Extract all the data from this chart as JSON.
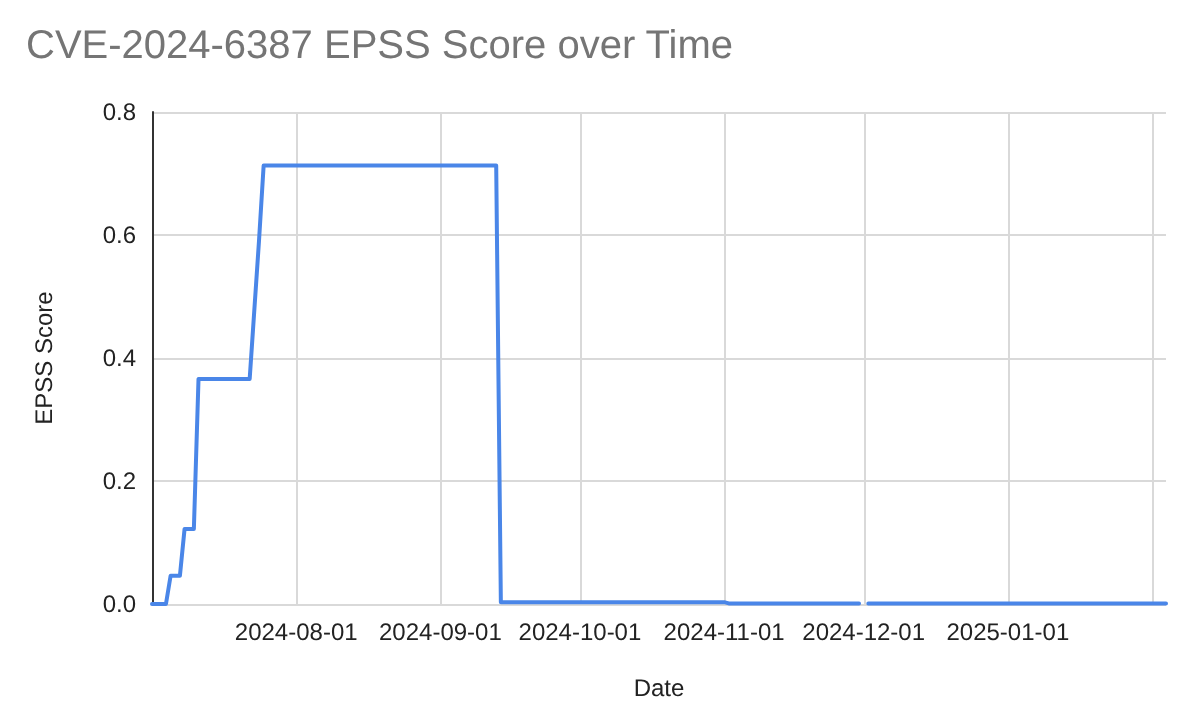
{
  "chart_data": {
    "type": "line",
    "title": "CVE-2024-6387 EPSS Score over Time",
    "xlabel": "Date",
    "ylabel": "EPSS Score",
    "x": [
      "2024-07-01",
      "2024-07-04",
      "2024-07-05",
      "2024-07-07",
      "2024-07-08",
      "2024-07-10",
      "2024-07-11",
      "2024-07-22",
      "2024-07-24",
      "2024-07-25",
      "2024-09-13",
      "2024-09-14",
      "2024-11-01",
      "2024-11-02",
      "2024-11-30",
      "2024-12-01",
      "2024-12-02",
      "2025-02-04"
    ],
    "series": [
      {
        "color": "#4a86e8",
        "values": [
          0,
          0,
          0.046,
          0.046,
          0.122,
          0.122,
          0.366,
          0.366,
          0.59,
          0.713,
          0.713,
          0.003,
          0.003,
          0.001,
          0.001,
          null,
          0.001,
          0.001
        ]
      }
    ],
    "xlim": [
      "2024-07-01",
      "2025-02-04"
    ],
    "xticks": [
      {
        "value": "2024-08-01",
        "label": "2024-08-01"
      },
      {
        "value": "2024-09-01",
        "label": "2024-09-01"
      },
      {
        "value": "2024-10-01",
        "label": "2024-10-01"
      },
      {
        "value": "2024-11-01",
        "label": "2024-11-01"
      },
      {
        "value": "2024-12-01",
        "label": "2024-12-01"
      },
      {
        "value": "2025-01-01",
        "label": "2025-01-01"
      },
      {
        "value": "2025-02-01",
        "label": null
      }
    ],
    "ylim": [
      0,
      0.8
    ],
    "yticks": [
      {
        "value": 0,
        "label": "0.0"
      },
      {
        "value": 0.2,
        "label": "0.2"
      },
      {
        "value": 0.4,
        "label": "0.4"
      },
      {
        "value": 0.6,
        "label": "0.6"
      },
      {
        "value": 0.8,
        "label": "0.8"
      }
    ],
    "grid": true,
    "marker": "none",
    "line_style": "solid"
  }
}
